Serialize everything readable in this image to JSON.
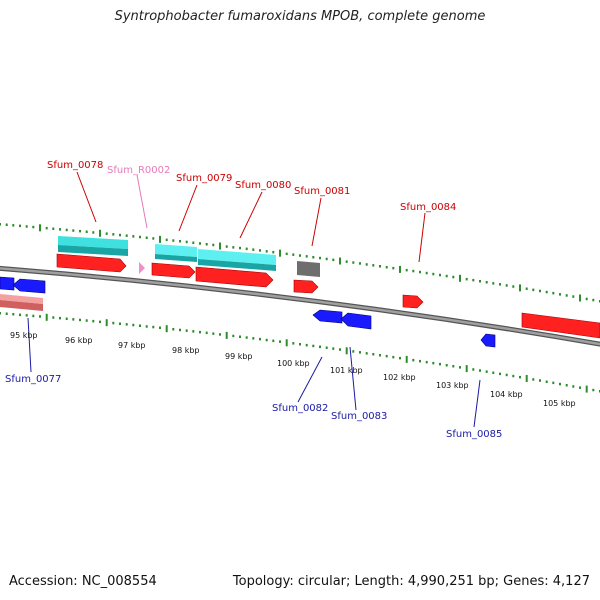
{
  "title": "Syntrophobacter fumaroxidans MPOB, complete genome",
  "footer": {
    "accession": "Accession: NC_008554",
    "summary": "Topology: circular; Length: 4,990,251 bp; Genes: 4,127"
  },
  "colors": {
    "backbone": "#8c8c8c",
    "tick": "#2e8b2e",
    "cds": "#ff1a1a",
    "cds_label_forward": "#cc0000",
    "cds_label_reverse": "#1a1aa6",
    "reverse_cds": "#1a1aff",
    "rna": "#f090c8",
    "rna_label": "#e87ab8",
    "feature_cyan": "#2ad6d6",
    "feature_pink": "#f08080",
    "feature_gray": "#6e6e6e"
  },
  "scale_labels": [
    "95 kbp",
    "96 kbp",
    "97 kbp",
    "98 kbp",
    "99 kbp",
    "100 kbp",
    "101 kbp",
    "102 kbp",
    "103 kbp",
    "104 kbp",
    "105 kbp"
  ],
  "genes": [
    {
      "id": "Sfum_0077",
      "strand": "reverse",
      "type": "CDS"
    },
    {
      "id": "Sfum_0078",
      "strand": "forward",
      "type": "CDS"
    },
    {
      "id": "Sfum_R0002",
      "strand": "forward",
      "type": "RNA"
    },
    {
      "id": "Sfum_0079",
      "strand": "forward",
      "type": "CDS"
    },
    {
      "id": "Sfum_0080",
      "strand": "forward",
      "type": "CDS"
    },
    {
      "id": "Sfum_0081",
      "strand": "forward",
      "type": "CDS"
    },
    {
      "id": "Sfum_0082",
      "strand": "reverse",
      "type": "CDS"
    },
    {
      "id": "Sfum_0083",
      "strand": "reverse",
      "type": "CDS"
    },
    {
      "id": "Sfum_0084",
      "strand": "forward",
      "type": "CDS"
    },
    {
      "id": "Sfum_0085",
      "strand": "reverse",
      "type": "CDS"
    }
  ]
}
